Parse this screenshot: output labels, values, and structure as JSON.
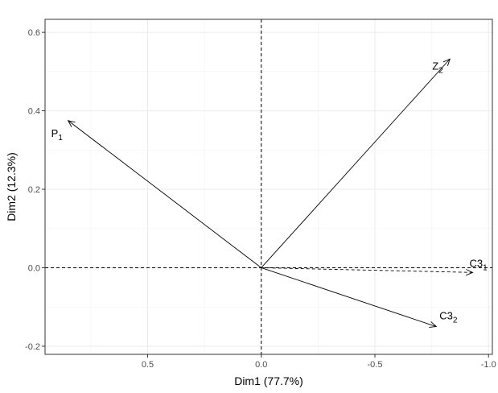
{
  "chart_data": {
    "type": "biplot",
    "xlabel": "Dim1 (77.7%)",
    "ylabel": "Dim2 (12.3%)",
    "xlim": [
      0.9514,
      -1.0169
    ],
    "ylim": [
      -0.2207,
      0.6331
    ],
    "x_reversed": true,
    "grid": true,
    "x_ticks": [
      {
        "value": 0.5,
        "label": "0.5"
      },
      {
        "value": 0.0,
        "label": "0.0"
      },
      {
        "value": -0.5,
        "label": "-0.5"
      },
      {
        "value": -1.0,
        "label": "-1.0"
      }
    ],
    "y_ticks": [
      {
        "value": 0.6,
        "label": "0.6"
      },
      {
        "value": 0.4,
        "label": "0.4"
      },
      {
        "value": 0.2,
        "label": "0.2"
      },
      {
        "value": 0.0,
        "label": "0.0"
      },
      {
        "value": -0.2,
        "label": "-0.2"
      }
    ],
    "reference_lines": {
      "x": 0,
      "y": 0,
      "style": "dashed"
    },
    "vectors": [
      {
        "base": "P",
        "sub": "1",
        "x": 0.85,
        "y": 0.375,
        "line": "solid"
      },
      {
        "base": "Z",
        "sub": "2",
        "x": -0.83,
        "y": 0.532,
        "line": "solid"
      },
      {
        "base": "C3",
        "sub": "1",
        "x": -0.93,
        "y": -0.012,
        "line": "dashed"
      },
      {
        "base": "C3",
        "sub": "2",
        "x": -0.77,
        "y": -0.15,
        "line": "solid"
      }
    ]
  }
}
